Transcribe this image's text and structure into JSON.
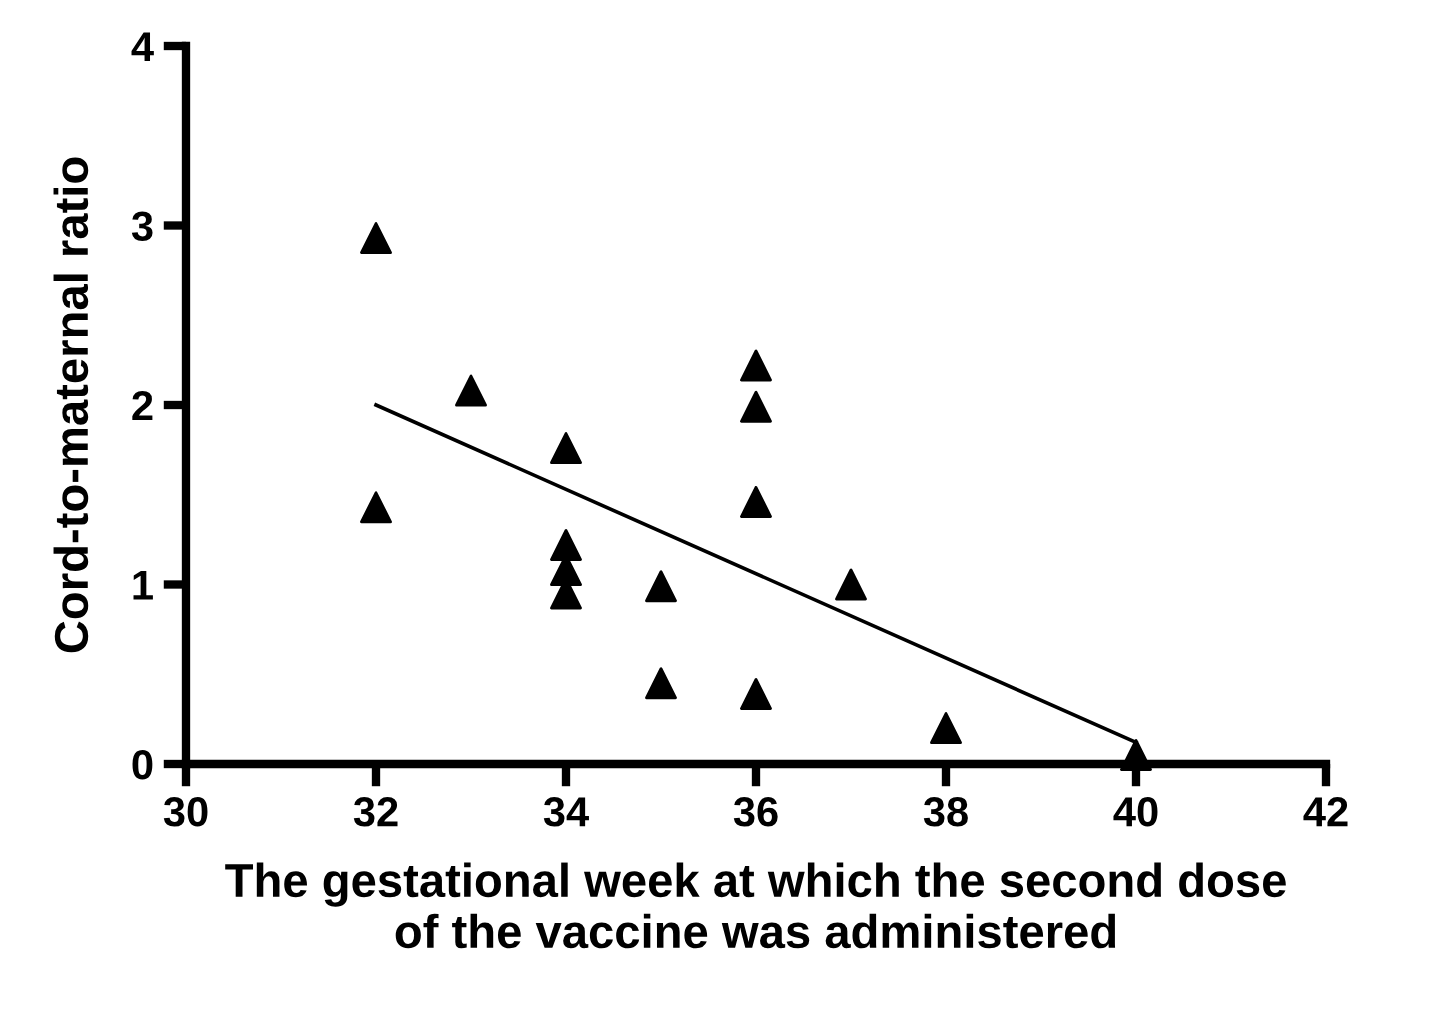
{
  "chart_data": {
    "type": "scatter",
    "xlabel": "The gestational week at which the second dose\nof the vaccine was administered",
    "ylabel": "Cord-to-maternal ratio",
    "series": [
      {
        "color": "#000000",
        "marker": "triangle",
        "x": [
          32,
          32,
          33,
          34,
          34,
          34,
          34,
          35,
          35,
          36,
          36,
          36,
          36,
          37,
          38,
          40
        ],
        "values": [
          2.93,
          1.43,
          2.08,
          1.76,
          1.22,
          1.08,
          0.95,
          0.99,
          0.45,
          2.22,
          1.99,
          1.46,
          0.39,
          1.0,
          0.2,
          0.05
        ]
      },
      {
        "type": "line",
        "color": "#000000",
        "marker": "none",
        "x": [
          32,
          40
        ],
        "values": [
          2.0,
          0.12
        ]
      }
    ],
    "xlim": [
      30,
      42
    ],
    "xticks": [
      30,
      32,
      34,
      36,
      38,
      40,
      42
    ],
    "ylim": [
      0,
      4
    ],
    "yticks": [
      0,
      1,
      2,
      3,
      4
    ],
    "grid": false,
    "legend": false
  }
}
